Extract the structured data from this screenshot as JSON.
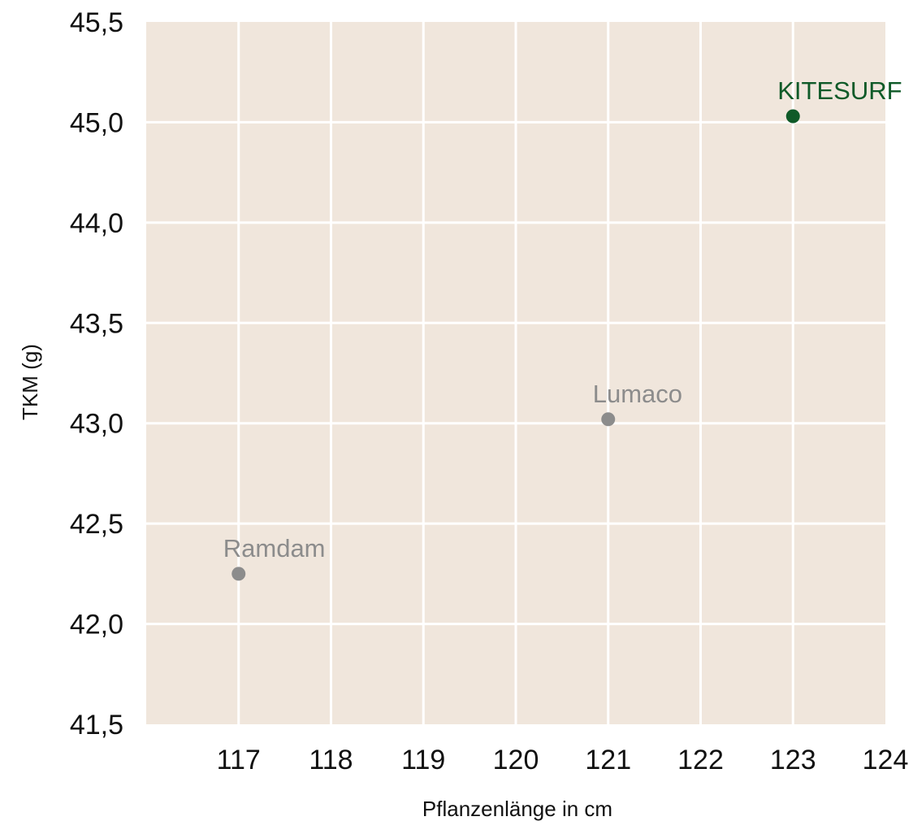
{
  "chart_data": {
    "type": "scatter",
    "title": "",
    "xlabel": "Pflanzenlänge in cm",
    "ylabel": "TKM (g)",
    "xlim": [
      116,
      124
    ],
    "ylim": [
      41.5,
      45.5
    ],
    "x_ticks": [
      "117",
      "118",
      "119",
      "120",
      "121",
      "122",
      "123",
      "124"
    ],
    "y_ticks": [
      "41,5",
      "42,0",
      "42,5",
      "43,0",
      "43,5",
      "44,0",
      "45,0",
      "45,5"
    ],
    "grid": true,
    "background_color": "#f0e6dc",
    "grid_color": "#ffffff",
    "points": [
      {
        "label": "Ramdam",
        "x": 117.0,
        "y": 42.25,
        "color": "#8c8c8c"
      },
      {
        "label": "Lumaco",
        "x": 121.0,
        "y": 43.02,
        "color": "#8c8c8c"
      },
      {
        "label": "KITESURF",
        "x": 123.0,
        "y": 45.03,
        "color": "#0f5a28"
      }
    ]
  }
}
